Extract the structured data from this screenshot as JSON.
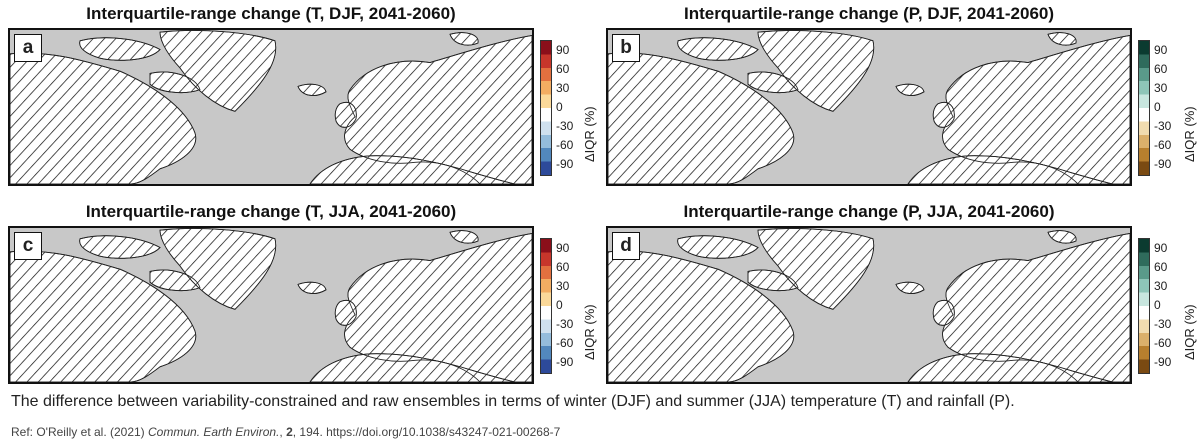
{
  "panels": [
    {
      "letter": "a",
      "title": "Interquartile-range change (T, DJF, 2041-2060)",
      "variable": "T",
      "season": "DJF",
      "colormap": "temperature"
    },
    {
      "letter": "b",
      "title": "Interquartile-range change (P, DJF, 2041-2060)",
      "variable": "P",
      "season": "DJF",
      "colormap": "precipitation"
    },
    {
      "letter": "c",
      "title": "Interquartile-range change (T, JJA, 2041-2060)",
      "variable": "T",
      "season": "JJA",
      "colormap": "temperature"
    },
    {
      "letter": "d",
      "title": "Interquartile-range change (P, JJA, 2041-2060)",
      "variable": "P",
      "season": "JJA",
      "colormap": "precipitation"
    }
  ],
  "colorbar": {
    "unit_label": "ΔIQR (%)",
    "ticks": [
      "90",
      "60",
      "30",
      "0",
      "-30",
      "-60",
      "-90"
    ],
    "temperature_colors": [
      "#8b0f1a",
      "#c7362b",
      "#e2703f",
      "#f3ad62",
      "#fbd99a",
      "#ffffff",
      "#cfe0ee",
      "#94bcdb",
      "#5288bd",
      "#2d4a9a"
    ],
    "precipitation_colors": [
      "#0b3b30",
      "#2f6b5c",
      "#5a9a8a",
      "#8ec5b8",
      "#c8e6df",
      "#ffffff",
      "#f1dcb0",
      "#dbb06b",
      "#b77f2e",
      "#7a4a12"
    ]
  },
  "caption": "The difference between variability-constrained and raw ensembles in terms of winter (DJF) and summer (JJA) temperature (T) and rainfall (P).",
  "reference": {
    "prefix": "Ref: O'Reilly et al. (2021) ",
    "journal": "Commun. Earth Environ.",
    "sep1": ", ",
    "volume": "2",
    "rest": ", 194. https://doi.org/10.1038/s43247-021-00268-7"
  }
}
